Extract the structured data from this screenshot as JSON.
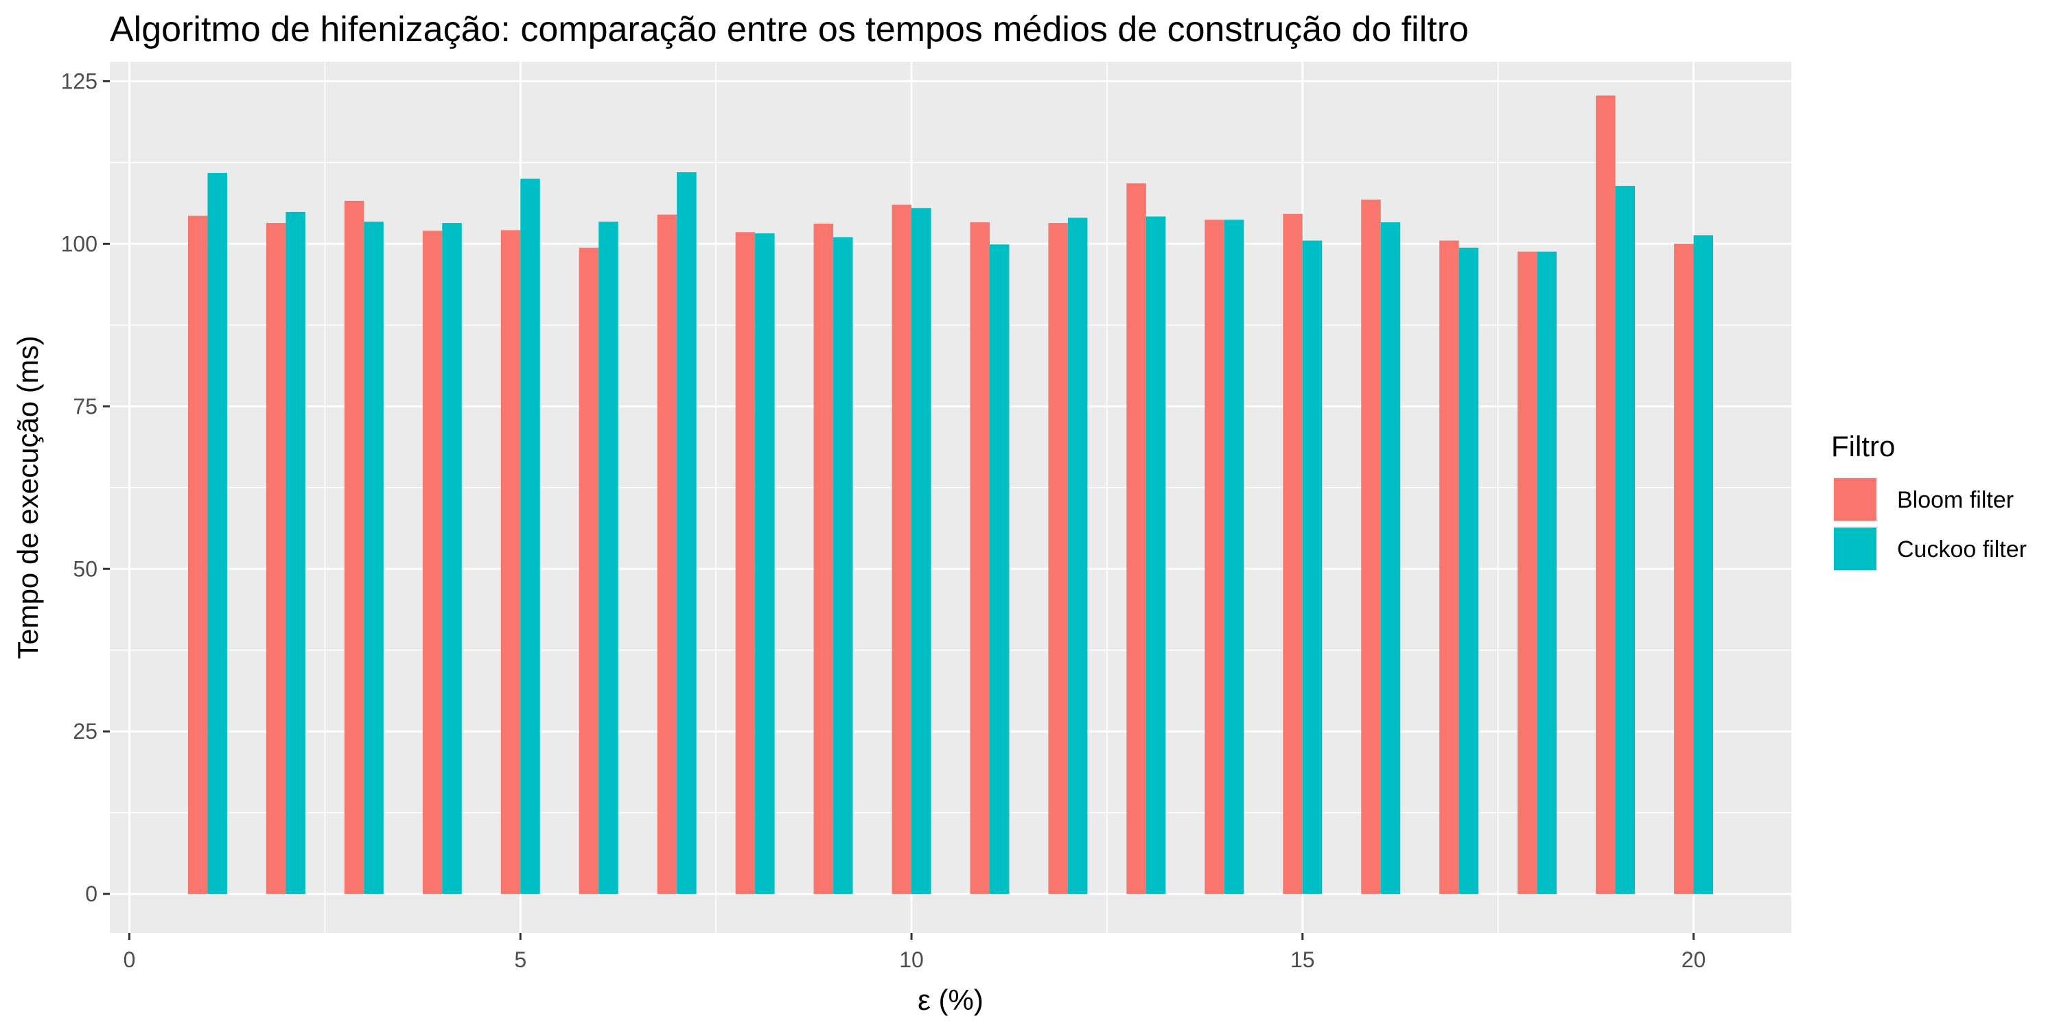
{
  "chart_data": {
    "type": "bar",
    "title": "Algoritmo de hifenização: comparação entre os tempos médios de construção do filtro",
    "xlabel": "ε (%)",
    "ylabel": "Tempo de execução (ms)",
    "x": [
      1,
      2,
      3,
      4,
      5,
      6,
      7,
      8,
      9,
      10,
      11,
      12,
      13,
      14,
      15,
      16,
      17,
      18,
      19,
      20
    ],
    "xlim": [
      -0.25,
      21.25
    ],
    "ylim": [
      -6,
      128
    ],
    "x_ticks": [
      0,
      5,
      10,
      15,
      20
    ],
    "y_ticks": [
      0,
      25,
      50,
      75,
      100,
      125
    ],
    "grid": true,
    "legend_title": "Filtro",
    "legend_position": "right",
    "series": [
      {
        "name": "Bloom filter",
        "color": "#F8766D",
        "values": [
          104.3,
          103.2,
          106.6,
          102.0,
          102.1,
          99.4,
          104.5,
          101.8,
          103.1,
          106.0,
          103.3,
          103.2,
          109.3,
          103.7,
          104.6,
          106.8,
          100.5,
          98.8,
          122.8,
          100.0
        ]
      },
      {
        "name": "Cuckoo filter",
        "color": "#00BFC4",
        "values": [
          110.9,
          104.9,
          103.4,
          103.2,
          110.0,
          103.4,
          111.0,
          101.6,
          101.0,
          105.5,
          99.9,
          104.0,
          104.2,
          103.7,
          100.5,
          103.3,
          99.4,
          98.8,
          108.9,
          101.3
        ]
      }
    ]
  }
}
